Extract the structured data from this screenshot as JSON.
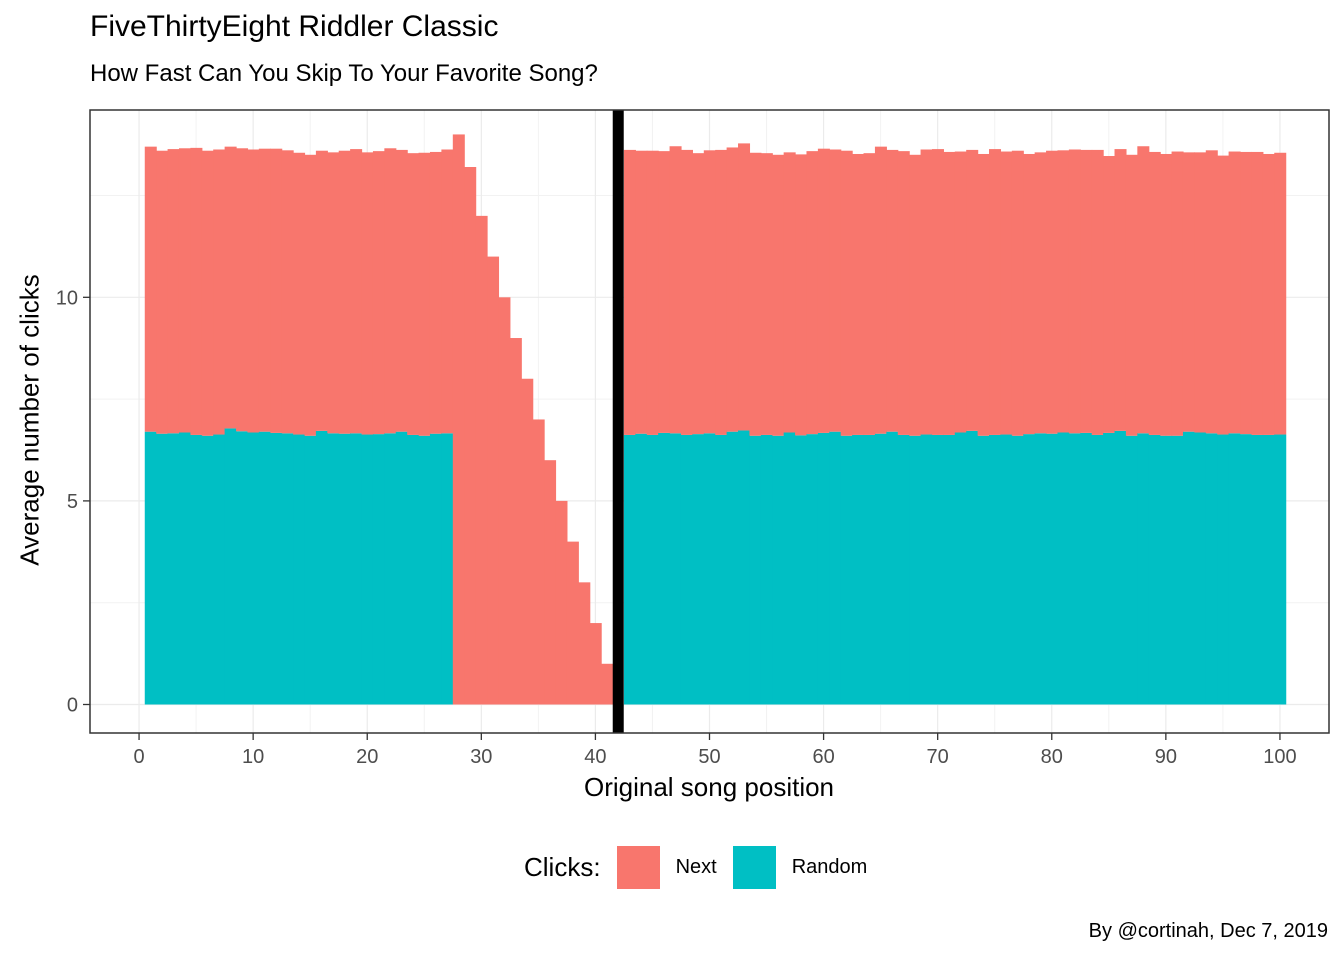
{
  "chart_data": {
    "type": "bar",
    "stacked": true,
    "title": "FiveThirtyEight Riddler Classic",
    "subtitle": "How Fast Can You Skip To Your Favorite Song?",
    "xlabel": "Original song position",
    "ylabel": "Average number of clicks",
    "caption": "By @cortinah, Dec 7, 2019",
    "xlim": [
      -4.3,
      104.3
    ],
    "ylim": [
      -0.7,
      14.6
    ],
    "xticks": [
      0,
      10,
      20,
      30,
      40,
      50,
      60,
      70,
      80,
      90,
      100
    ],
    "yticks": [
      0,
      5,
      10
    ],
    "grid": true,
    "legend_position": "bottom",
    "legend_title": "Clicks:",
    "vline_x": 42,
    "x": [
      1,
      2,
      3,
      4,
      5,
      6,
      7,
      8,
      9,
      10,
      11,
      12,
      13,
      14,
      15,
      16,
      17,
      18,
      19,
      20,
      21,
      22,
      23,
      24,
      25,
      26,
      27,
      28,
      29,
      30,
      31,
      32,
      33,
      34,
      35,
      36,
      37,
      38,
      39,
      40,
      41,
      43,
      44,
      45,
      46,
      47,
      48,
      49,
      50,
      51,
      52,
      53,
      54,
      55,
      56,
      57,
      58,
      59,
      60,
      61,
      62,
      63,
      64,
      65,
      66,
      67,
      68,
      69,
      70,
      71,
      72,
      73,
      74,
      75,
      76,
      77,
      78,
      79,
      80,
      81,
      82,
      83,
      84,
      85,
      86,
      87,
      88,
      89,
      90,
      91,
      92,
      93,
      94,
      95,
      96,
      97,
      98,
      99,
      100
    ],
    "series": [
      {
        "name": "Next",
        "color": "#F8766D",
        "values": [
          7.0,
          6.95,
          6.98,
          6.98,
          7.05,
          7.0,
          7.0,
          6.92,
          6.95,
          6.95,
          6.95,
          6.98,
          6.95,
          6.92,
          6.9,
          6.88,
          6.9,
          6.95,
          6.98,
          6.93,
          6.95,
          7.0,
          6.92,
          6.92,
          6.95,
          6.92,
          6.97,
          14.0,
          13.2,
          12.0,
          11.0,
          10.0,
          9.0,
          8.0,
          7.0,
          6.0,
          5.0,
          4.0,
          3.0,
          2.0,
          1.0,
          7.0,
          6.95,
          6.98,
          6.92,
          7.05,
          7.0,
          6.9,
          6.95,
          7.0,
          6.98,
          7.05,
          6.95,
          6.92,
          6.9,
          6.88,
          6.9,
          6.95,
          6.98,
          6.93,
          7.0,
          6.9,
          6.92,
          7.05,
          6.92,
          6.97,
          6.9,
          7.0,
          7.02,
          6.95,
          6.9,
          6.9,
          6.92,
          7.02,
          6.95,
          7.0,
          6.88,
          6.9,
          6.95,
          6.93,
          6.97,
          6.95,
          7.0,
          6.8,
          6.92,
          6.9,
          7.05,
          6.95,
          6.92,
          6.98,
          6.86,
          6.88,
          6.95,
          6.85,
          6.92,
          6.93,
          6.95,
          6.9,
          6.92
        ],
        "note_values": "Next segment height; stacked above Random where Random > 0"
      },
      {
        "name": "Random",
        "color": "#00BFC4",
        "values": [
          6.7,
          6.65,
          6.66,
          6.68,
          6.62,
          6.6,
          6.63,
          6.78,
          6.71,
          6.68,
          6.7,
          6.67,
          6.66,
          6.63,
          6.6,
          6.72,
          6.66,
          6.65,
          6.66,
          6.63,
          6.64,
          6.66,
          6.7,
          6.62,
          6.6,
          6.65,
          6.66,
          0,
          0,
          0,
          0,
          0,
          0,
          0,
          0,
          0,
          0,
          0,
          0,
          0,
          0,
          6.62,
          6.65,
          6.62,
          6.67,
          6.66,
          6.62,
          6.64,
          6.66,
          6.62,
          6.7,
          6.73,
          6.6,
          6.62,
          6.6,
          6.68,
          6.61,
          6.64,
          6.67,
          6.7,
          6.6,
          6.62,
          6.62,
          6.65,
          6.7,
          6.62,
          6.6,
          6.63,
          6.62,
          6.62,
          6.68,
          6.72,
          6.6,
          6.62,
          6.63,
          6.6,
          6.64,
          6.66,
          6.65,
          6.68,
          6.66,
          6.67,
          6.62,
          6.67,
          6.72,
          6.6,
          6.66,
          6.62,
          6.6,
          6.6,
          6.7,
          6.68,
          6.66,
          6.63,
          6.66,
          6.64,
          6.62,
          6.62,
          6.63
        ]
      }
    ]
  }
}
